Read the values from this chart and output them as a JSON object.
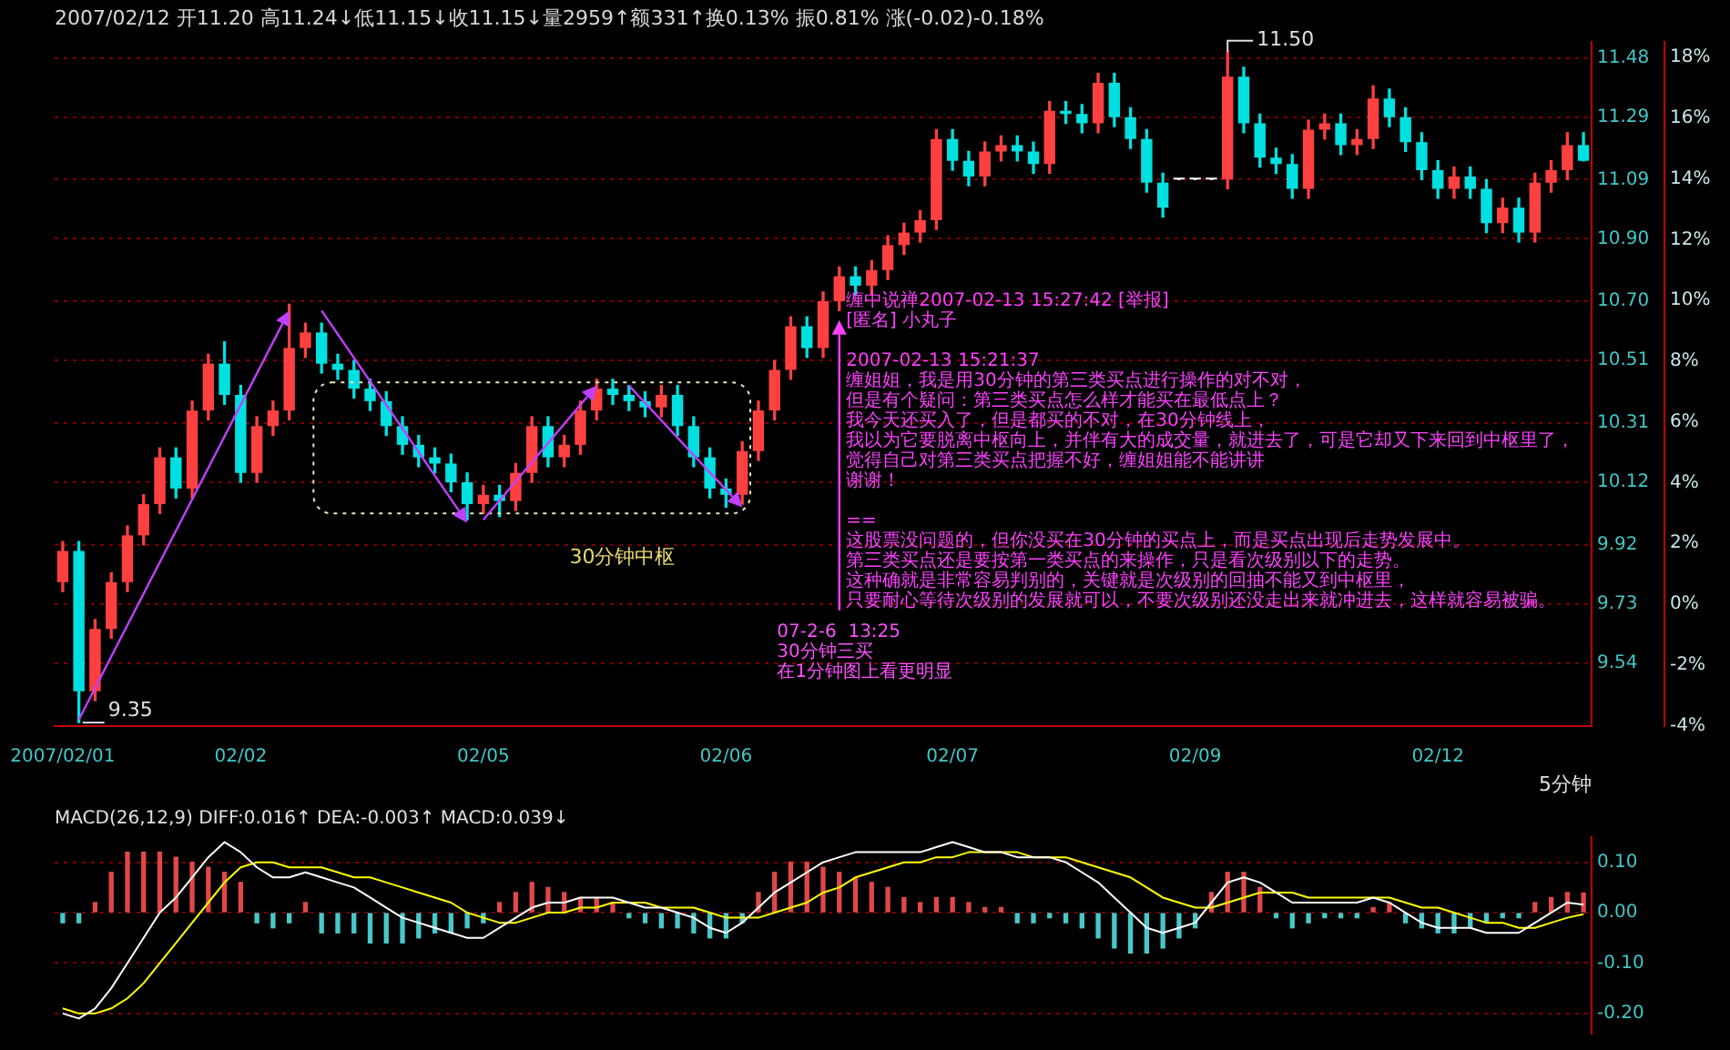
{
  "chart_data": [
    {
      "type": "candlestick",
      "subtitle": "2007/02/12 开11.20 高11.24↓低11.15↓收11.15↓量2959↑额331↑换0.13% 振0.81% 涨(-0.02)-0.18%",
      "xlabel": "5分钟",
      "categories": [
        "2007/02/01",
        null,
        null,
        null,
        null,
        null,
        null,
        null,
        null,
        null,
        null,
        "02/02",
        null,
        null,
        null,
        null,
        null,
        null,
        null,
        null,
        null,
        null,
        null,
        null,
        null,
        null,
        "02/05",
        null,
        null,
        null,
        null,
        null,
        null,
        null,
        null,
        null,
        null,
        null,
        null,
        null,
        null,
        "02/06",
        null,
        null,
        null,
        null,
        null,
        null,
        null,
        null,
        null,
        null,
        null,
        null,
        null,
        "02/07",
        null,
        null,
        null,
        null,
        null,
        null,
        null,
        null,
        null,
        null,
        null,
        null,
        null,
        null,
        "02/09",
        null,
        null,
        null,
        null,
        null,
        null,
        null,
        null,
        null,
        null,
        null,
        null,
        null,
        null,
        "02/12",
        null,
        null,
        null,
        null,
        null,
        null,
        null,
        null,
        null
      ],
      "ohlc": [
        [
          9.8,
          9.93,
          9.77,
          9.9
        ],
        [
          9.9,
          9.93,
          9.35,
          9.45
        ],
        [
          9.45,
          9.68,
          9.42,
          9.65
        ],
        [
          9.65,
          9.83,
          9.62,
          9.8
        ],
        [
          9.8,
          9.98,
          9.77,
          9.95
        ],
        [
          9.95,
          10.08,
          9.92,
          10.05
        ],
        [
          10.05,
          10.23,
          10.02,
          10.2
        ],
        [
          10.2,
          10.23,
          10.07,
          10.1
        ],
        [
          10.1,
          10.38,
          10.07,
          10.35
        ],
        [
          10.35,
          10.53,
          10.32,
          10.5
        ],
        [
          10.5,
          10.57,
          10.37,
          10.4
        ],
        [
          10.4,
          10.43,
          10.12,
          10.15
        ],
        [
          10.15,
          10.33,
          10.12,
          10.3
        ],
        [
          10.3,
          10.38,
          10.27,
          10.35
        ],
        [
          10.35,
          10.69,
          10.32,
          10.55
        ],
        [
          10.55,
          10.63,
          10.52,
          10.6
        ],
        [
          10.6,
          10.63,
          10.47,
          10.5
        ],
        [
          10.5,
          10.53,
          10.45,
          10.48
        ],
        [
          10.48,
          10.51,
          10.39,
          10.42
        ],
        [
          10.42,
          10.45,
          10.35,
          10.38
        ],
        [
          10.38,
          10.41,
          10.27,
          10.3
        ],
        [
          10.3,
          10.33,
          10.21,
          10.24
        ],
        [
          10.24,
          10.27,
          10.17,
          10.2
        ],
        [
          10.2,
          10.23,
          10.15,
          10.18
        ],
        [
          10.18,
          10.21,
          10.09,
          10.12
        ],
        [
          10.12,
          10.15,
          10.0,
          10.05
        ],
        [
          10.05,
          10.11,
          10.02,
          10.08
        ],
        [
          10.08,
          10.11,
          10.01,
          10.06
        ],
        [
          10.06,
          10.18,
          10.03,
          10.15
        ],
        [
          10.15,
          10.33,
          10.12,
          10.3
        ],
        [
          10.3,
          10.33,
          10.17,
          10.2
        ],
        [
          10.2,
          10.27,
          10.17,
          10.24
        ],
        [
          10.24,
          10.38,
          10.21,
          10.35
        ],
        [
          10.35,
          10.45,
          10.32,
          10.42
        ],
        [
          10.42,
          10.45,
          10.37,
          10.4
        ],
        [
          10.4,
          10.43,
          10.35,
          10.38
        ],
        [
          10.38,
          10.41,
          10.33,
          10.36
        ],
        [
          10.36,
          10.43,
          10.33,
          10.4
        ],
        [
          10.4,
          10.43,
          10.27,
          10.3
        ],
        [
          10.3,
          10.33,
          10.17,
          10.2
        ],
        [
          10.2,
          10.23,
          10.07,
          10.1
        ],
        [
          10.1,
          10.13,
          10.04,
          10.08
        ],
        [
          10.08,
          10.25,
          10.05,
          10.22
        ],
        [
          10.22,
          10.38,
          10.19,
          10.35
        ],
        [
          10.35,
          10.51,
          10.32,
          10.48
        ],
        [
          10.48,
          10.65,
          10.45,
          10.62
        ],
        [
          10.62,
          10.65,
          10.52,
          10.55
        ],
        [
          10.55,
          10.73,
          10.52,
          10.7
        ],
        [
          10.7,
          10.81,
          10.67,
          10.78
        ],
        [
          10.78,
          10.81,
          10.72,
          10.75
        ],
        [
          10.75,
          10.83,
          10.72,
          10.8
        ],
        [
          10.8,
          10.91,
          10.77,
          10.88
        ],
        [
          10.88,
          10.95,
          10.85,
          10.92
        ],
        [
          10.92,
          10.99,
          10.89,
          10.96
        ],
        [
          10.96,
          11.25,
          10.93,
          11.22
        ],
        [
          11.22,
          11.25,
          11.12,
          11.15
        ],
        [
          11.15,
          11.18,
          11.07,
          11.1
        ],
        [
          11.1,
          11.21,
          11.07,
          11.18
        ],
        [
          11.18,
          11.23,
          11.15,
          11.2
        ],
        [
          11.2,
          11.23,
          11.15,
          11.18
        ],
        [
          11.18,
          11.21,
          11.11,
          11.14
        ],
        [
          11.14,
          11.34,
          11.11,
          11.31
        ],
        [
          11.31,
          11.34,
          11.27,
          11.3
        ],
        [
          11.3,
          11.33,
          11.24,
          11.27
        ],
        [
          11.27,
          11.43,
          11.24,
          11.4
        ],
        [
          11.4,
          11.43,
          11.26,
          11.29
        ],
        [
          11.29,
          11.32,
          11.19,
          11.22
        ],
        [
          11.22,
          11.25,
          11.05,
          11.08
        ],
        [
          11.08,
          11.11,
          10.97,
          11.0
        ],
        [
          11.09,
          11.09,
          11.09,
          11.09
        ],
        [
          11.09,
          11.09,
          11.09,
          11.09
        ],
        [
          11.09,
          11.09,
          11.09,
          11.09
        ],
        [
          11.09,
          11.5,
          11.06,
          11.42
        ],
        [
          11.42,
          11.45,
          11.24,
          11.27
        ],
        [
          11.27,
          11.3,
          11.13,
          11.16
        ],
        [
          11.16,
          11.19,
          11.11,
          11.14
        ],
        [
          11.14,
          11.17,
          11.03,
          11.06
        ],
        [
          11.06,
          11.28,
          11.03,
          11.25
        ],
        [
          11.25,
          11.3,
          11.22,
          11.27
        ],
        [
          11.27,
          11.3,
          11.17,
          11.2
        ],
        [
          11.2,
          11.25,
          11.17,
          11.22
        ],
        [
          11.22,
          11.39,
          11.19,
          11.35
        ],
        [
          11.35,
          11.38,
          11.26,
          11.29
        ],
        [
          11.29,
          11.32,
          11.18,
          11.21
        ],
        [
          11.21,
          11.24,
          11.09,
          11.12
        ],
        [
          11.12,
          11.15,
          11.03,
          11.06
        ],
        [
          11.06,
          11.13,
          11.03,
          11.1
        ],
        [
          11.1,
          11.13,
          11.03,
          11.06
        ],
        [
          11.06,
          11.09,
          10.92,
          10.95
        ],
        [
          10.95,
          11.03,
          10.92,
          11.0
        ],
        [
          11.0,
          11.03,
          10.89,
          10.92
        ],
        [
          10.92,
          11.11,
          10.89,
          11.08
        ],
        [
          11.08,
          11.15,
          11.05,
          11.12
        ],
        [
          11.12,
          11.24,
          11.09,
          11.2
        ],
        [
          11.2,
          11.24,
          11.15,
          11.15
        ]
      ],
      "colors": [
        "#ff4040",
        "#00e0e0",
        "#ff4040",
        "#ff4040",
        "#ff4040",
        "#ff4040",
        "#ff4040",
        "#00e0e0",
        "#ff4040",
        "#ff4040",
        "#00e0e0",
        "#00e0e0",
        "#ff4040",
        "#ff4040",
        "#ff4040",
        "#ff4040",
        "#00e0e0",
        "#00e0e0",
        "#00e0e0",
        "#00e0e0",
        "#00e0e0",
        "#00e0e0",
        "#00e0e0",
        "#00e0e0",
        "#00e0e0",
        "#00e0e0",
        "#ff4040",
        "#00e0e0",
        "#ff4040",
        "#ff4040",
        "#00e0e0",
        "#ff4040",
        "#ff4040",
        "#ff4040",
        "#00e0e0",
        "#00e0e0",
        "#00e0e0",
        "#ff4040",
        "#00e0e0",
        "#00e0e0",
        "#00e0e0",
        "#00e0e0",
        "#ff4040",
        "#ff4040",
        "#ff4040",
        "#ff4040",
        "#00e0e0",
        "#ff4040",
        "#ff4040",
        "#00e0e0",
        "#ff4040",
        "#ff4040",
        "#ff4040",
        "#ff4040",
        "#ff4040",
        "#00e0e0",
        "#00e0e0",
        "#ff4040",
        "#ff4040",
        "#00e0e0",
        "#00e0e0",
        "#ff4040",
        "#00e0e0",
        "#00e0e0",
        "#ff4040",
        "#00e0e0",
        "#00e0e0",
        "#00e0e0",
        "#00e0e0",
        "#ffffff",
        "#ffffff",
        "#ffffff",
        "#ff4040",
        "#00e0e0",
        "#00e0e0",
        "#00e0e0",
        "#00e0e0",
        "#ff4040",
        "#ff4040",
        "#00e0e0",
        "#ff4040",
        "#ff4040",
        "#00e0e0",
        "#00e0e0",
        "#00e0e0",
        "#00e0e0",
        "#ff4040",
        "#00e0e0",
        "#00e0e0",
        "#ff4040",
        "#00e0e0",
        "#ff4040",
        "#ff4040",
        "#ff4040",
        "#00e0e0"
      ],
      "ylim": [
        9.34,
        11.53
      ],
      "yticks": [
        11.48,
        11.29,
        11.09,
        {
          "value": 10.9,
          "label": "10.90"
        },
        {
          "value": 10.7,
          "label": "10.70"
        },
        10.51,
        10.31,
        10.12,
        9.92,
        9.73,
        9.54
      ],
      "y2lim": [
        -4,
        18.5
      ],
      "y2ticks": [
        {
          "value": 18,
          "label": "18%"
        },
        {
          "value": 16,
          "label": "16%"
        },
        {
          "value": 14,
          "label": "14%"
        },
        {
          "value": 12,
          "label": "12%"
        },
        {
          "value": 10,
          "label": "10%"
        },
        {
          "value": 8,
          "label": "8%"
        },
        {
          "value": 6,
          "label": "6%"
        },
        {
          "value": 4,
          "label": "4%"
        },
        {
          "value": 2,
          "label": "2%"
        },
        {
          "value": 0,
          "label": "0%"
        },
        {
          "value": -2,
          "label": "-2%"
        },
        {
          "value": -4,
          "label": "-4%"
        }
      ],
      "grid": "y",
      "annotations": [
        "11.50",
        "9.35",
        "30分钟中枢",
        "07-2-6  13:25",
        "30分钟三买",
        "在1分钟图上看更明显",
        "缠中说禅2007-02-13 15:27:42 [举报]",
        "[匿名] 小丸子",
        "2007-02-13 15:21:37",
        "缠姐姐，我是用30分钟的第三类买点进行操作的对不对，",
        "但是有个疑问：第三类买点怎么样才能买在最低点上？",
        "我今天还买入了，但是都买的不对，在30分钟线上，",
        "我以为它要脱离中枢向上，并伴有大的成交量，就进去了，可是它却又下来回到中枢里了，",
        "觉得自己对第三类买点把握不好，缠姐姐能不能讲讲",
        "谢谢！",
        "==",
        "这股票没问题的，但你没买在30分钟的买点上，而是买点出现后走势发展中。",
        "第三类买点还是要按第一类买点的来操作，只是看次级别以下的走势。",
        "这种确就是非常容易判别的，关键就是次级别的回抽不能又到中枢里，",
        "只要耐心等待次级别的发展就可以，不要次级别还没走出来就冲进去，这样就容易被骗。"
      ]
    },
    {
      "type": "bar",
      "title": "MACD(26,12,9) DIFF:0.016↑ DEA:-0.003↑ MACD:0.039↓",
      "categories": [
        null,
        null,
        null,
        null,
        null,
        null,
        null,
        null,
        null,
        null,
        null,
        null,
        null,
        null,
        null,
        null,
        null,
        null,
        null,
        null,
        null,
        null,
        null,
        null,
        null,
        null,
        null,
        null,
        null,
        null,
        null,
        null,
        null,
        null,
        null,
        null,
        null,
        null,
        null,
        null,
        null,
        null,
        null,
        null,
        null,
        null,
        null,
        null,
        null,
        null,
        null,
        null,
        null,
        null,
        null,
        null,
        null,
        null,
        null,
        null,
        null,
        null,
        null,
        null,
        null,
        null,
        null,
        null,
        null,
        null,
        null,
        null,
        null,
        null,
        null,
        null,
        null,
        null,
        null,
        null,
        null,
        null,
        null,
        null,
        null,
        null,
        null,
        null,
        null,
        null,
        null,
        null,
        null,
        null,
        null
      ],
      "series": [
        {
          "type": "bar",
          "colors": [
            "#48c8c8",
            "#48c8c8",
            "#e04848",
            "#e04848",
            "#e04848",
            "#e04848",
            "#e04848",
            "#e04848",
            "#e04848",
            "#e04848",
            "#e04848",
            "#e04848",
            "#48c8c8",
            "#48c8c8",
            "#48c8c8",
            "#e04848",
            "#48c8c8",
            "#48c8c8",
            "#48c8c8",
            "#48c8c8",
            "#48c8c8",
            "#48c8c8",
            "#48c8c8",
            "#48c8c8",
            "#48c8c8",
            "#48c8c8",
            "#48c8c8",
            "#e04848",
            "#e04848",
            "#e04848",
            "#e04848",
            "#e04848",
            "#e04848",
            "#e04848",
            "#e04848",
            "#48c8c8",
            "#48c8c8",
            "#48c8c8",
            "#48c8c8",
            "#48c8c8",
            "#48c8c8",
            "#48c8c8",
            "#48c8c8",
            "#e04848",
            "#e04848",
            "#e04848",
            "#e04848",
            "#e04848",
            "#e04848",
            "#e04848",
            "#e04848",
            "#e04848",
            "#e04848",
            "#e04848",
            "#e04848",
            "#e04848",
            "#e04848",
            "#e04848",
            "#e04848",
            "#48c8c8",
            "#48c8c8",
            "#48c8c8",
            "#48c8c8",
            "#48c8c8",
            "#48c8c8",
            "#48c8c8",
            "#48c8c8",
            "#48c8c8",
            "#48c8c8",
            "#48c8c8",
            "#48c8c8",
            "#e04848",
            "#e04848",
            "#e04848",
            "#e04848",
            "#48c8c8",
            "#48c8c8",
            "#48c8c8",
            "#48c8c8",
            "#48c8c8",
            "#48c8c8",
            "#e04848",
            "#e04848",
            "#48c8c8",
            "#48c8c8",
            "#48c8c8",
            "#48c8c8",
            "#48c8c8",
            "#48c8c8",
            "#48c8c8",
            "#48c8c8",
            "#e04848",
            "#e04848",
            "#e04848",
            "#e04848"
          ],
          "values": [
            -0.02,
            -0.02,
            0.02,
            0.08,
            0.12,
            0.12,
            0.12,
            0.11,
            0.1,
            0.09,
            0.08,
            0.06,
            -0.02,
            -0.03,
            -0.02,
            0.02,
            -0.04,
            -0.04,
            -0.04,
            -0.06,
            -0.06,
            -0.06,
            -0.05,
            -0.04,
            -0.04,
            -0.03,
            -0.02,
            0.02,
            0.04,
            0.06,
            0.05,
            0.04,
            0.03,
            0.03,
            0.02,
            -0.01,
            -0.02,
            -0.03,
            -0.03,
            -0.04,
            -0.05,
            -0.05,
            -0.02,
            0.04,
            0.08,
            0.1,
            0.1,
            0.09,
            0.08,
            0.07,
            0.06,
            0.05,
            0.03,
            0.02,
            0.03,
            0.03,
            0.02,
            0.01,
            0.01,
            -0.02,
            -0.02,
            -0.01,
            -0.02,
            -0.03,
            -0.05,
            -0.07,
            -0.08,
            -0.08,
            -0.07,
            -0.05,
            -0.03,
            0.04,
            0.08,
            0.08,
            0.05,
            -0.01,
            -0.03,
            -0.02,
            -0.01,
            -0.01,
            -0.01,
            0.01,
            0.02,
            -0.02,
            -0.03,
            -0.04,
            -0.04,
            -0.03,
            -0.02,
            -0.01,
            -0.01,
            0.02,
            0.03,
            0.04,
            0.039
          ]
        },
        {
          "type": "line",
          "color": "#ffffff",
          "values": [
            -0.2,
            -0.21,
            -0.19,
            -0.15,
            -0.1,
            -0.05,
            0.0,
            0.03,
            0.07,
            0.11,
            0.14,
            0.12,
            0.09,
            0.07,
            0.07,
            0.08,
            0.07,
            0.06,
            0.05,
            0.03,
            0.01,
            -0.01,
            -0.02,
            -0.03,
            -0.04,
            -0.05,
            -0.05,
            -0.03,
            -0.01,
            0.01,
            0.02,
            0.02,
            0.03,
            0.03,
            0.03,
            0.02,
            0.01,
            0.01,
            0.0,
            -0.01,
            -0.03,
            -0.04,
            -0.02,
            0.01,
            0.04,
            0.06,
            0.08,
            0.1,
            0.11,
            0.12,
            0.12,
            0.12,
            0.12,
            0.12,
            0.13,
            0.14,
            0.13,
            0.12,
            0.12,
            0.11,
            0.11,
            0.11,
            0.1,
            0.08,
            0.06,
            0.03,
            0.0,
            -0.03,
            -0.04,
            -0.03,
            -0.02,
            0.02,
            0.06,
            0.07,
            0.06,
            0.04,
            0.02,
            0.02,
            0.02,
            0.02,
            0.02,
            0.03,
            0.02,
            0.0,
            -0.02,
            -0.03,
            -0.03,
            -0.03,
            -0.04,
            -0.04,
            -0.04,
            -0.02,
            0.0,
            0.02,
            0.016
          ]
        },
        {
          "type": "line",
          "color": "#ffff00",
          "values": [
            -0.19,
            -0.2,
            -0.2,
            -0.19,
            -0.17,
            -0.14,
            -0.1,
            -0.06,
            -0.02,
            0.02,
            0.06,
            0.09,
            0.1,
            0.1,
            0.09,
            0.09,
            0.09,
            0.08,
            0.07,
            0.07,
            0.06,
            0.05,
            0.04,
            0.03,
            0.02,
            0.0,
            -0.01,
            -0.02,
            -0.02,
            -0.01,
            0.0,
            0.0,
            0.01,
            0.01,
            0.02,
            0.02,
            0.02,
            0.01,
            0.01,
            0.01,
            0.0,
            -0.01,
            -0.01,
            -0.01,
            0.0,
            0.01,
            0.02,
            0.04,
            0.05,
            0.07,
            0.08,
            0.09,
            0.1,
            0.1,
            0.11,
            0.11,
            0.12,
            0.12,
            0.12,
            0.12,
            0.11,
            0.11,
            0.11,
            0.1,
            0.09,
            0.08,
            0.07,
            0.05,
            0.03,
            0.02,
            0.01,
            0.01,
            0.02,
            0.03,
            0.04,
            0.04,
            0.04,
            0.03,
            0.03,
            0.03,
            0.03,
            0.03,
            0.03,
            0.02,
            0.01,
            0.01,
            0.0,
            -0.01,
            -0.02,
            -0.02,
            -0.03,
            -0.03,
            -0.02,
            -0.01,
            -0.003
          ]
        }
      ],
      "ylim": [
        -0.24,
        0.15
      ],
      "yticks": [
        {
          "value": 0.1,
          "label": "0.10"
        },
        {
          "value": 0,
          "label": "0.00"
        },
        {
          "value": -0.1,
          "label": "-0.10"
        },
        {
          "value": -0.2,
          "label": "-0.20"
        }
      ],
      "grid": "y",
      "tick_labels": "y"
    }
  ]
}
